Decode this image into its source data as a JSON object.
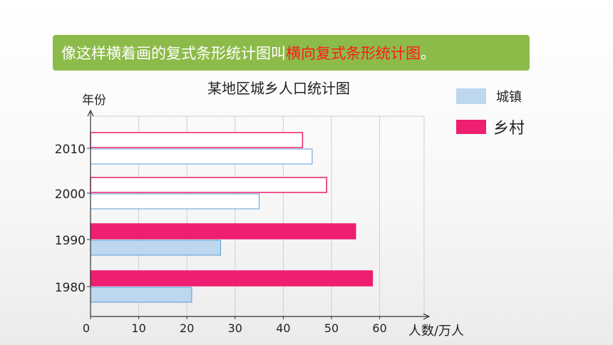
{
  "banner": {
    "text_main": "像这样横着画的复式条形统计图叫",
    "text_highlight": "横向复式条形统计图",
    "text_end": "。"
  },
  "colors": {
    "banner_bg": "#8dbb4a",
    "highlight": "#ff1a1a",
    "urban_fill": "#bdd7ee",
    "urban_stroke": "#5b9bd5",
    "rural_fill": "#ee1e70",
    "rural_stroke": "#ee1e70"
  },
  "chart_data": {
    "type": "bar",
    "orientation": "horizontal",
    "title": "某地区城乡人口统计图",
    "ylabel": "年份",
    "xlabel": "人数/万人",
    "categories": [
      "2010",
      "2000",
      "1990",
      "1980"
    ],
    "x_ticks": [
      0,
      10,
      20,
      30,
      40,
      50,
      60
    ],
    "xlim": [
      0,
      70
    ],
    "series": [
      {
        "name": "城镇",
        "values": [
          46,
          35,
          27,
          21
        ],
        "filled": [
          false,
          false,
          true,
          true
        ]
      },
      {
        "name": "乡村",
        "values": [
          44,
          49,
          55,
          58.5
        ],
        "filled": [
          false,
          false,
          true,
          true
        ]
      }
    ],
    "legend_position": "top-right",
    "grid": true
  }
}
